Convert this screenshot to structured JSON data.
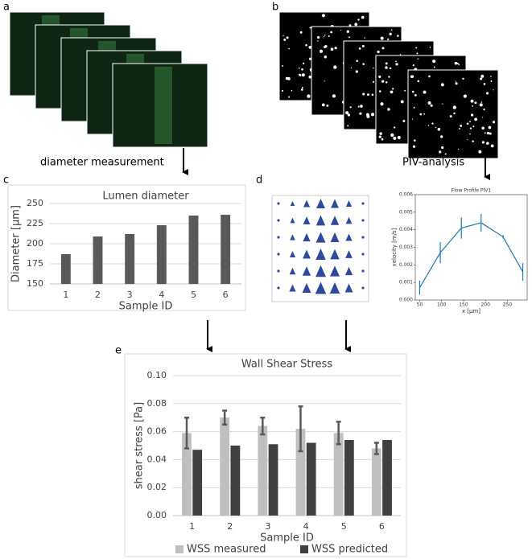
{
  "panel_labels": [
    "a",
    "b",
    "c",
    "d",
    "e"
  ],
  "step_labels": [
    "diameter measurement",
    "PIV-analysis"
  ],
  "chart_data": [
    {
      "type": "bar",
      "title": "Lumen diameter",
      "x_label": "Sample ID",
      "y_label": "Diameter [µm]",
      "categories": [
        "1",
        "2",
        "3",
        "4",
        "5",
        "6"
      ],
      "values": [
        187,
        209,
        212,
        223,
        235,
        236
      ],
      "color": "#595959",
      "ylim": [
        150,
        250
      ],
      "yticks": [
        150,
        175,
        200,
        225,
        250
      ],
      "grid": true
    },
    {
      "type": "line",
      "title": "Flow Profile PIV1",
      "x_label": "x [µm]",
      "y_label": "velocity [m/s]",
      "x": [
        50,
        97,
        145,
        190,
        240,
        285
      ],
      "values": [
        0.0007,
        0.0027,
        0.0041,
        0.0044,
        0.0036,
        0.0016
      ],
      "errors": [
        0.0004,
        0.0006,
        0.0006,
        0.0005,
        0.0001,
        0.0005
      ],
      "color": "#1f77b4",
      "xlim": [
        40,
        295
      ],
      "xticks": [
        50,
        100,
        150,
        200,
        250
      ],
      "ylim": [
        0,
        0.006
      ],
      "yticks": [
        {
          "value": 0,
          "label": "0.000"
        },
        {
          "value": 0.001,
          "label": "0.001"
        },
        {
          "value": 0.002,
          "label": "0.002"
        },
        {
          "value": 0.003,
          "label": "0.003"
        },
        {
          "value": 0.004,
          "label": "0.004"
        },
        {
          "value": 0.005,
          "label": "0.005"
        },
        {
          "value": 0.006,
          "label": "0.006"
        }
      ]
    },
    {
      "type": "bar",
      "title": "Wall Shear Stress",
      "x_label": "Sample ID",
      "y_label": "shear stress [Pa]",
      "categories": [
        "1",
        "2",
        "3",
        "4",
        "5",
        "6"
      ],
      "series": [
        {
          "name": "WSS measured",
          "color": "#bfbfbf",
          "values": [
            0.059,
            0.07,
            0.064,
            0.062,
            0.059,
            0.048
          ],
          "errors": [
            0.011,
            0.005,
            0.006,
            0.016,
            0.008,
            0.004
          ]
        },
        {
          "name": "WSS predicted",
          "color": "#404040",
          "values": [
            0.047,
            0.05,
            0.051,
            0.052,
            0.054,
            0.054
          ]
        }
      ],
      "ylim": [
        0,
        0.1
      ],
      "yticks": [
        {
          "value": 0,
          "label": "0.00"
        },
        {
          "value": 0.02,
          "label": "0.02"
        },
        {
          "value": 0.04,
          "label": "0.04"
        },
        {
          "value": 0.06,
          "label": "0.06"
        },
        {
          "value": 0.08,
          "label": "0.08"
        },
        {
          "value": 0.1,
          "label": "0.10"
        }
      ],
      "grid": true,
      "legend": "bottom"
    }
  ]
}
